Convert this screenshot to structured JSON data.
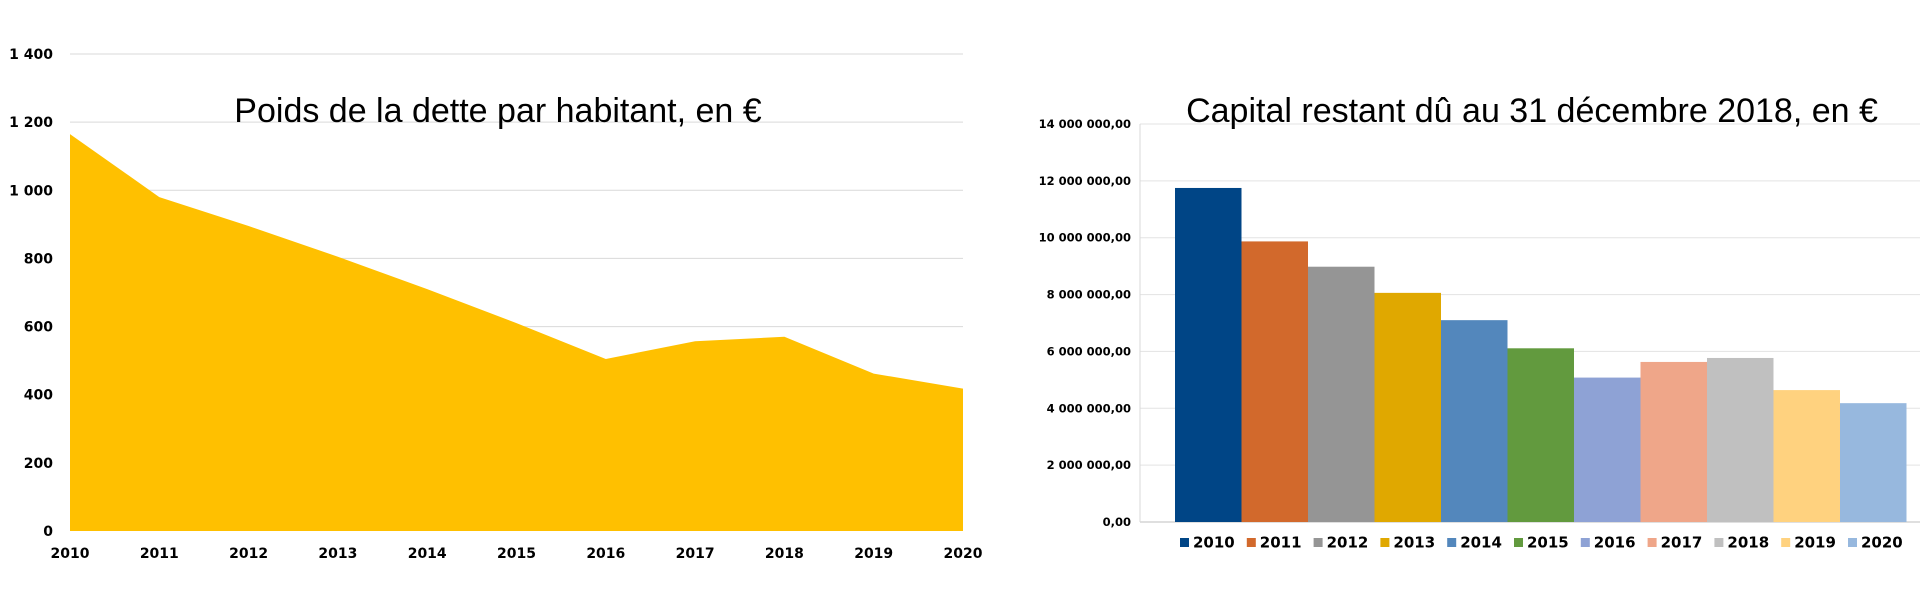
{
  "chart_data": [
    {
      "type": "area",
      "title": "Poids de la dette par habitant, en €",
      "xlabel": "",
      "ylabel": "",
      "x": [
        "2010",
        "2011",
        "2012",
        "2013",
        "2014",
        "2015",
        "2016",
        "2017",
        "2018",
        "2019",
        "2020"
      ],
      "values": [
        1165,
        980,
        895,
        805,
        710,
        610,
        505,
        557,
        570,
        462,
        418
      ],
      "ylim": [
        0,
        1400
      ],
      "yticks": [
        0,
        200,
        400,
        600,
        800,
        1000,
        1200,
        1400
      ],
      "ytick_labels": [
        "0",
        "200",
        "400",
        "600",
        "800",
        "1 000",
        "1 200",
        "1 400"
      ],
      "grid": true,
      "legend": "none",
      "color": "#FFC000"
    },
    {
      "type": "bar",
      "title": "Capital restant dû au 31 décembre 2018, en €",
      "xlabel": "",
      "ylabel": "",
      "categories": [
        "2010",
        "2011",
        "2012",
        "2013",
        "2014",
        "2015",
        "2016",
        "2017",
        "2018",
        "2019",
        "2020"
      ],
      "values": [
        11750000,
        9870000,
        8980000,
        8060000,
        7100000,
        6110000,
        5080000,
        5630000,
        5770000,
        4640000,
        4180000
      ],
      "colors": [
        "#004586",
        "#D2692C",
        "#959595",
        "#E0A800",
        "#5387BC",
        "#629A3E",
        "#8EA2D5",
        "#EFA689",
        "#C0C0C0",
        "#FFD27F",
        "#97B8DE"
      ],
      "ylim": [
        0,
        14000000
      ],
      "yticks": [
        0,
        2000000,
        4000000,
        6000000,
        8000000,
        10000000,
        12000000,
        14000000
      ],
      "ytick_labels": [
        "0,00",
        "2 000 000,00",
        "4 000 000,00",
        "6 000 000,00",
        "8 000 000,00",
        "10 000 000,00",
        "12 000 000,00",
        "14 000 000,00"
      ],
      "grid": true,
      "legend": "bottom"
    }
  ]
}
